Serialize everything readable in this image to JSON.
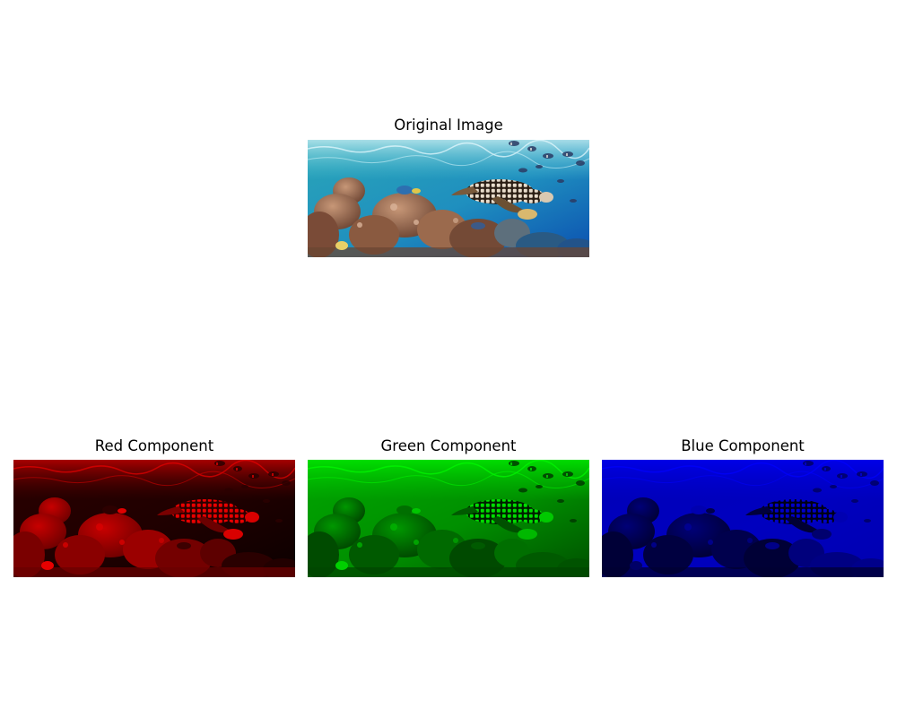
{
  "figure": {
    "original": {
      "title": "Original Image"
    },
    "red": {
      "title": "Red Component",
      "tint": "#ff0000"
    },
    "green": {
      "title": "Green Component",
      "tint": "#00ff00"
    },
    "blue": {
      "title": "Blue Component",
      "tint": "#0000ff"
    }
  }
}
